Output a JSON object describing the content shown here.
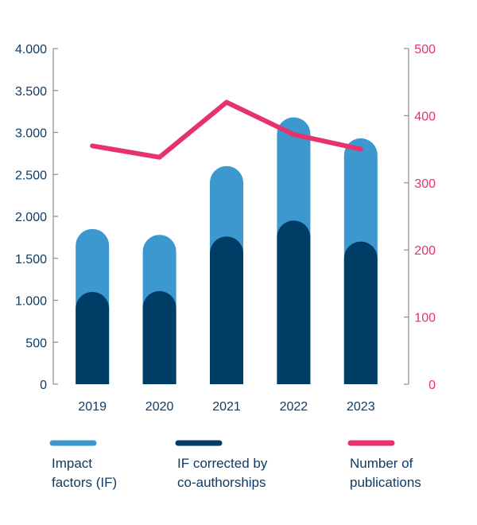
{
  "chart_data": {
    "type": "bar",
    "categories": [
      "2019",
      "2020",
      "2021",
      "2022",
      "2023"
    ],
    "series": [
      {
        "name": "Impact factors (IF)",
        "kind": "bar",
        "axis": "left",
        "color": "#3d98cf",
        "values": [
          1850,
          1780,
          2600,
          3180,
          2930
        ]
      },
      {
        "name": "IF corrected by co-authorships",
        "kind": "bar",
        "axis": "left",
        "color": "#003d66",
        "values": [
          1100,
          1110,
          1760,
          1950,
          1700
        ]
      },
      {
        "name": "Number of publications",
        "kind": "line",
        "axis": "right",
        "color": "#e6336b",
        "values": [
          355,
          338,
          420,
          372,
          350
        ]
      }
    ],
    "left_axis": {
      "ylim": [
        0,
        4000
      ],
      "ticks": [
        0,
        500,
        1000,
        1500,
        2000,
        2500,
        3000,
        3500,
        4000
      ],
      "tick_labels": [
        "0",
        "500",
        "1.000",
        "1.500",
        "2.000",
        "2.500",
        "3.000",
        "3.500",
        "4.000"
      ],
      "color": "#0d3b66"
    },
    "right_axis": {
      "ylim": [
        0,
        500
      ],
      "ticks": [
        0,
        100,
        200,
        300,
        400,
        500
      ],
      "tick_labels": [
        "0",
        "100",
        "200",
        "300",
        "400",
        "500"
      ],
      "color": "#e6336b"
    },
    "legend": {
      "placement": "bottom",
      "items": [
        {
          "lines": [
            "Impact",
            "factors (IF)"
          ],
          "color": "#3d98cf"
        },
        {
          "lines": [
            "IF corrected by",
            "co-authorships"
          ],
          "color": "#003d66"
        },
        {
          "lines": [
            "Number of",
            "publications"
          ],
          "color": "#e6336b"
        }
      ]
    },
    "grid": false,
    "axis_line_color": "#8c8c8c"
  }
}
